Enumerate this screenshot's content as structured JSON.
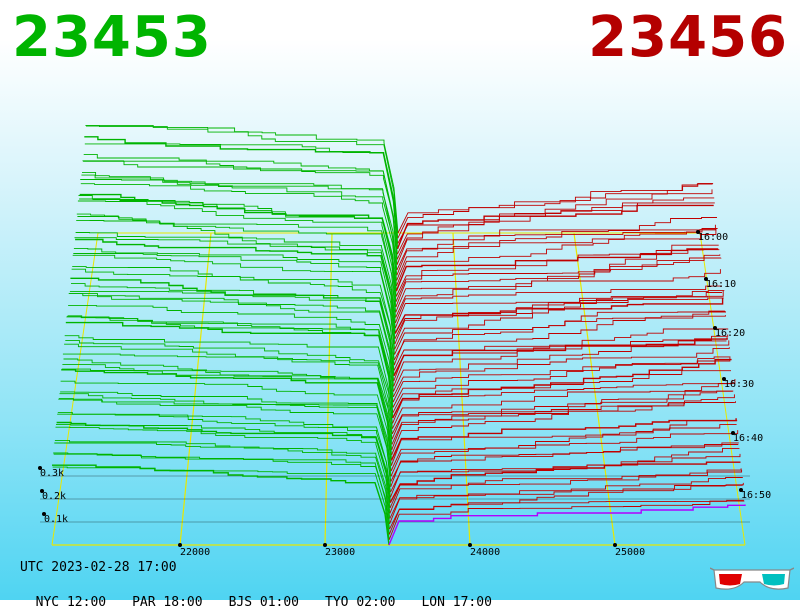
{
  "header": {
    "bid_price": "23453",
    "ask_price": "23456",
    "bid_color": "#00b400",
    "ask_color": "#b40000"
  },
  "chart_data": {
    "type": "area",
    "x_ticks": [
      "22000",
      "23000",
      "24000",
      "25000"
    ],
    "x_tick_values": [
      22000,
      23000,
      24000,
      25000
    ],
    "volume_ticks": [
      "0.1k",
      "0.2k",
      "0.3k"
    ],
    "volume_tick_values": [
      100,
      200,
      300
    ],
    "time_ticks": [
      "16:00",
      "16:10",
      "16:20",
      "16:30",
      "16:40",
      "16:50"
    ],
    "mid_price": 23455,
    "colors": {
      "bids": "#00b400",
      "asks": "#c00000",
      "grid": "#e8e800",
      "current": "#b000ff"
    }
  },
  "footer": {
    "utc": "UTC 2023-02-28 17:00",
    "cities": [
      {
        "label": "NYC 12:00"
      },
      {
        "label": "PAR 18:00"
      },
      {
        "label": "BJS 01:00"
      },
      {
        "label": "TYO 02:00"
      },
      {
        "label": "LON 17:00"
      }
    ]
  },
  "icons": {
    "glasses": "3d-glasses-icon"
  }
}
